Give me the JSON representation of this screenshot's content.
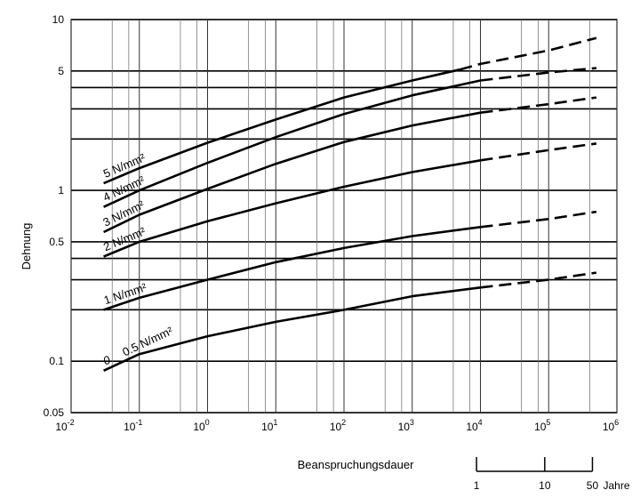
{
  "chart_data": {
    "type": "line",
    "x_scale": "log",
    "y_scale": "log",
    "xlim": [
      0.01,
      1000000
    ],
    "ylim": [
      0.05,
      10
    ],
    "grid": true,
    "xlabel": "Beanspruchungsdauer",
    "ylabel": "Dehnung",
    "x_ticks": [
      {
        "value": 0.01,
        "base": "10",
        "exp": "-2"
      },
      {
        "value": 0.1,
        "base": "10",
        "exp": "-1"
      },
      {
        "value": 1,
        "base": "10",
        "exp": "0"
      },
      {
        "value": 10,
        "base": "10",
        "exp": "1"
      },
      {
        "value": 100,
        "base": "10",
        "exp": "2"
      },
      {
        "value": 1000,
        "base": "10",
        "exp": "3"
      },
      {
        "value": 10000,
        "base": "10",
        "exp": "4"
      },
      {
        "value": 100000,
        "base": "10",
        "exp": "5"
      },
      {
        "value": 1000000,
        "base": "10",
        "exp": "6"
      }
    ],
    "y_ticks": [
      {
        "value": 10,
        "label": "10"
      },
      {
        "value": 5,
        "label": "5"
      },
      {
        "value": 1,
        "label": "1"
      },
      {
        "value": 0.5,
        "label": "0.5"
      },
      {
        "value": 0.1,
        "label": "0.1"
      },
      {
        "value": 0.05,
        "label": "0.05"
      }
    ],
    "y_gridlines": [
      10,
      5,
      4,
      3,
      2,
      1,
      0.5,
      0.4,
      0.3,
      0.2,
      0.1,
      0.05
    ],
    "x_gridlines": [
      0.04,
      0.07,
      0.4,
      0.7,
      4,
      7,
      40,
      70,
      400,
      700,
      4000,
      7000,
      40000,
      70000,
      400000
    ],
    "secondary_axis": {
      "ticks": [
        {
          "x": 8760,
          "label": "1"
        },
        {
          "x": 87600,
          "label": "10"
        },
        {
          "x": 438000,
          "label": "50"
        }
      ],
      "unit": "Jahre"
    },
    "series": [
      {
        "name": "5 N/mm²",
        "x": [
          0.03,
          0.1,
          1,
          10,
          100,
          1000,
          5000
        ],
        "y": [
          1.1,
          1.35,
          1.9,
          2.6,
          3.5,
          4.4,
          5.1
        ],
        "dashed_x": [
          5000,
          10000,
          100000,
          500000
        ],
        "dashed_y": [
          5.1,
          5.5,
          6.6,
          7.8
        ]
      },
      {
        "name": "4 N/mm²",
        "x": [
          0.03,
          0.1,
          1,
          10,
          100,
          1000,
          10000
        ],
        "y": [
          0.8,
          1.0,
          1.45,
          2.05,
          2.8,
          3.6,
          4.4
        ],
        "dashed_x": [
          10000,
          100000,
          500000
        ],
        "dashed_y": [
          4.4,
          4.9,
          5.2
        ]
      },
      {
        "name": "3 N/mm²",
        "x": [
          0.03,
          0.1,
          1,
          10,
          100,
          1000,
          10000
        ],
        "y": [
          0.57,
          0.72,
          1.02,
          1.43,
          1.92,
          2.4,
          2.85
        ],
        "dashed_x": [
          10000,
          100000,
          500000
        ],
        "dashed_y": [
          2.85,
          3.2,
          3.5
        ]
      },
      {
        "name": "2 N/mm²",
        "x": [
          0.03,
          0.1,
          1,
          10,
          100,
          1000,
          10000
        ],
        "y": [
          0.41,
          0.5,
          0.66,
          0.84,
          1.05,
          1.28,
          1.5
        ],
        "dashed_x": [
          10000,
          100000,
          500000
        ],
        "dashed_y": [
          1.5,
          1.72,
          1.88
        ]
      },
      {
        "name": "1 N/mm²",
        "x": [
          0.03,
          0.1,
          1,
          10,
          100,
          1000,
          10000
        ],
        "y": [
          0.2,
          0.235,
          0.3,
          0.38,
          0.46,
          0.54,
          0.61
        ],
        "dashed_x": [
          10000,
          100000,
          500000
        ],
        "dashed_y": [
          0.61,
          0.68,
          0.75
        ]
      },
      {
        "name": "0.5 N/mm²",
        "x": [
          0.03,
          0.1,
          1,
          10,
          100,
          1000,
          10000
        ],
        "y": [
          0.088,
          0.11,
          0.14,
          0.17,
          0.2,
          0.24,
          0.27
        ],
        "dashed_x": [
          10000,
          100000,
          500000
        ],
        "dashed_y": [
          0.27,
          0.3,
          0.33
        ]
      }
    ],
    "series_label_prefix": {
      "0.5 N/mm²": "0"
    }
  }
}
